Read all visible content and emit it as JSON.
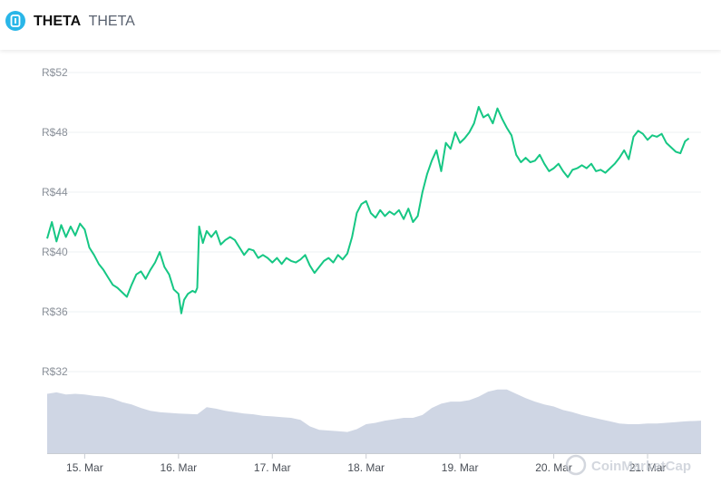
{
  "header": {
    "name": "THETA",
    "symbol": "THETA",
    "logo_icon": "theta-logo-icon"
  },
  "watermark": "CoinMarketCap",
  "colors": {
    "line": "#16c784",
    "volume": "#cfd6e4",
    "grid": "#eef0f3"
  },
  "chart_data": {
    "type": "line",
    "y_ticks": [
      "R$52",
      "R$48",
      "R$44",
      "R$40",
      "R$36",
      "R$32"
    ],
    "y_tick_values": [
      52,
      48,
      44,
      40,
      36,
      32
    ],
    "ylim": [
      31,
      53
    ],
    "x_ticks": [
      "15. Mar",
      "16. Mar",
      "17. Mar",
      "18. Mar",
      "19. Mar",
      "20. Mar",
      "21. Mar"
    ],
    "x_tick_values": [
      15,
      16,
      17,
      18,
      19,
      20,
      21
    ],
    "xlim": [
      14.6,
      21.57
    ],
    "grid": true,
    "series": [
      {
        "values": [
          [
            14.6,
            40.9
          ],
          [
            14.65,
            42.0
          ],
          [
            14.7,
            40.7
          ],
          [
            14.75,
            41.8
          ],
          [
            14.8,
            41.0
          ],
          [
            14.85,
            41.7
          ],
          [
            14.9,
            41.1
          ],
          [
            14.95,
            41.9
          ],
          [
            15.0,
            41.5
          ],
          [
            15.05,
            40.3
          ],
          [
            15.1,
            39.8
          ],
          [
            15.15,
            39.2
          ],
          [
            15.2,
            38.8
          ],
          [
            15.25,
            38.3
          ],
          [
            15.3,
            37.8
          ],
          [
            15.35,
            37.6
          ],
          [
            15.4,
            37.3
          ],
          [
            15.45,
            37.0
          ],
          [
            15.5,
            37.8
          ],
          [
            15.55,
            38.5
          ],
          [
            15.6,
            38.7
          ],
          [
            15.65,
            38.2
          ],
          [
            15.7,
            38.8
          ],
          [
            15.75,
            39.3
          ],
          [
            15.8,
            40.0
          ],
          [
            15.85,
            39.0
          ],
          [
            15.9,
            38.5
          ],
          [
            15.95,
            37.5
          ],
          [
            16.0,
            37.2
          ],
          [
            16.03,
            35.9
          ],
          [
            16.06,
            36.8
          ],
          [
            16.1,
            37.2
          ],
          [
            16.15,
            37.4
          ],
          [
            16.18,
            37.3
          ],
          [
            16.2,
            37.6
          ],
          [
            16.22,
            41.7
          ],
          [
            16.26,
            40.6
          ],
          [
            16.3,
            41.4
          ],
          [
            16.35,
            41.0
          ],
          [
            16.4,
            41.4
          ],
          [
            16.45,
            40.5
          ],
          [
            16.5,
            40.8
          ],
          [
            16.55,
            41.0
          ],
          [
            16.6,
            40.8
          ],
          [
            16.65,
            40.3
          ],
          [
            16.7,
            39.8
          ],
          [
            16.75,
            40.2
          ],
          [
            16.8,
            40.1
          ],
          [
            16.85,
            39.6
          ],
          [
            16.9,
            39.8
          ],
          [
            16.95,
            39.6
          ],
          [
            17.0,
            39.3
          ],
          [
            17.05,
            39.6
          ],
          [
            17.1,
            39.2
          ],
          [
            17.15,
            39.6
          ],
          [
            17.2,
            39.4
          ],
          [
            17.25,
            39.3
          ],
          [
            17.3,
            39.5
          ],
          [
            17.35,
            39.8
          ],
          [
            17.4,
            39.1
          ],
          [
            17.45,
            38.6
          ],
          [
            17.5,
            39.0
          ],
          [
            17.55,
            39.4
          ],
          [
            17.6,
            39.6
          ],
          [
            17.65,
            39.3
          ],
          [
            17.7,
            39.8
          ],
          [
            17.75,
            39.5
          ],
          [
            17.8,
            39.9
          ],
          [
            17.85,
            41.0
          ],
          [
            17.9,
            42.6
          ],
          [
            17.95,
            43.2
          ],
          [
            18.0,
            43.4
          ],
          [
            18.05,
            42.6
          ],
          [
            18.1,
            42.3
          ],
          [
            18.15,
            42.8
          ],
          [
            18.2,
            42.4
          ],
          [
            18.25,
            42.7
          ],
          [
            18.3,
            42.5
          ],
          [
            18.35,
            42.8
          ],
          [
            18.4,
            42.2
          ],
          [
            18.45,
            42.9
          ],
          [
            18.5,
            42.0
          ],
          [
            18.55,
            42.4
          ],
          [
            18.6,
            44.0
          ],
          [
            18.65,
            45.2
          ],
          [
            18.7,
            46.1
          ],
          [
            18.75,
            46.8
          ],
          [
            18.8,
            45.4
          ],
          [
            18.85,
            47.3
          ],
          [
            18.9,
            46.9
          ],
          [
            18.95,
            48.0
          ],
          [
            19.0,
            47.3
          ],
          [
            19.05,
            47.6
          ],
          [
            19.1,
            48.0
          ],
          [
            19.15,
            48.6
          ],
          [
            19.2,
            49.7
          ],
          [
            19.25,
            49.0
          ],
          [
            19.3,
            49.2
          ],
          [
            19.35,
            48.6
          ],
          [
            19.4,
            49.6
          ],
          [
            19.45,
            48.9
          ],
          [
            19.5,
            48.3
          ],
          [
            19.55,
            47.8
          ],
          [
            19.6,
            46.5
          ],
          [
            19.65,
            46.0
          ],
          [
            19.7,
            46.3
          ],
          [
            19.75,
            46.0
          ],
          [
            19.8,
            46.1
          ],
          [
            19.85,
            46.5
          ],
          [
            19.9,
            45.9
          ],
          [
            19.95,
            45.4
          ],
          [
            20.0,
            45.6
          ],
          [
            20.05,
            45.9
          ],
          [
            20.1,
            45.4
          ],
          [
            20.15,
            45.0
          ],
          [
            20.2,
            45.5
          ],
          [
            20.25,
            45.6
          ],
          [
            20.3,
            45.8
          ],
          [
            20.35,
            45.6
          ],
          [
            20.4,
            45.9
          ],
          [
            20.45,
            45.4
          ],
          [
            20.5,
            45.5
          ],
          [
            20.55,
            45.3
          ],
          [
            20.6,
            45.6
          ],
          [
            20.65,
            45.9
          ],
          [
            20.7,
            46.3
          ],
          [
            20.75,
            46.8
          ],
          [
            20.8,
            46.2
          ],
          [
            20.85,
            47.7
          ],
          [
            20.9,
            48.1
          ],
          [
            20.95,
            47.9
          ],
          [
            21.0,
            47.5
          ],
          [
            21.05,
            47.8
          ],
          [
            21.1,
            47.7
          ],
          [
            21.15,
            47.9
          ],
          [
            21.2,
            47.3
          ],
          [
            21.25,
            47.0
          ],
          [
            21.3,
            46.7
          ],
          [
            21.35,
            46.6
          ],
          [
            21.4,
            47.4
          ],
          [
            21.44,
            47.6
          ]
        ]
      }
    ],
    "volume_relative": [
      [
        14.6,
        0.84
      ],
      [
        14.7,
        0.86
      ],
      [
        14.8,
        0.83
      ],
      [
        14.9,
        0.84
      ],
      [
        15.0,
        0.83
      ],
      [
        15.1,
        0.81
      ],
      [
        15.2,
        0.8
      ],
      [
        15.3,
        0.77
      ],
      [
        15.4,
        0.72
      ],
      [
        15.5,
        0.69
      ],
      [
        15.6,
        0.64
      ],
      [
        15.7,
        0.6
      ],
      [
        15.8,
        0.58
      ],
      [
        15.9,
        0.57
      ],
      [
        16.0,
        0.56
      ],
      [
        16.2,
        0.55
      ],
      [
        16.3,
        0.65
      ],
      [
        16.4,
        0.63
      ],
      [
        16.5,
        0.6
      ],
      [
        16.6,
        0.58
      ],
      [
        16.7,
        0.56
      ],
      [
        16.8,
        0.55
      ],
      [
        16.9,
        0.53
      ],
      [
        17.0,
        0.52
      ],
      [
        17.1,
        0.51
      ],
      [
        17.2,
        0.5
      ],
      [
        17.3,
        0.47
      ],
      [
        17.4,
        0.38
      ],
      [
        17.5,
        0.33
      ],
      [
        17.6,
        0.32
      ],
      [
        17.7,
        0.31
      ],
      [
        17.8,
        0.3
      ],
      [
        17.9,
        0.34
      ],
      [
        18.0,
        0.41
      ],
      [
        18.1,
        0.43
      ],
      [
        18.2,
        0.46
      ],
      [
        18.3,
        0.48
      ],
      [
        18.4,
        0.5
      ],
      [
        18.5,
        0.5
      ],
      [
        18.6,
        0.54
      ],
      [
        18.7,
        0.64
      ],
      [
        18.8,
        0.7
      ],
      [
        18.9,
        0.73
      ],
      [
        19.0,
        0.73
      ],
      [
        19.1,
        0.75
      ],
      [
        19.2,
        0.8
      ],
      [
        19.3,
        0.87
      ],
      [
        19.4,
        0.9
      ],
      [
        19.5,
        0.9
      ],
      [
        19.6,
        0.84
      ],
      [
        19.7,
        0.78
      ],
      [
        19.8,
        0.73
      ],
      [
        19.9,
        0.69
      ],
      [
        20.0,
        0.66
      ],
      [
        20.1,
        0.61
      ],
      [
        20.2,
        0.58
      ],
      [
        20.3,
        0.54
      ],
      [
        20.4,
        0.51
      ],
      [
        20.5,
        0.48
      ],
      [
        20.6,
        0.45
      ],
      [
        20.7,
        0.42
      ],
      [
        20.8,
        0.41
      ],
      [
        20.9,
        0.41
      ],
      [
        21.0,
        0.42
      ],
      [
        21.1,
        0.42
      ],
      [
        21.2,
        0.43
      ],
      [
        21.3,
        0.44
      ],
      [
        21.4,
        0.45
      ],
      [
        21.57,
        0.46
      ]
    ]
  }
}
